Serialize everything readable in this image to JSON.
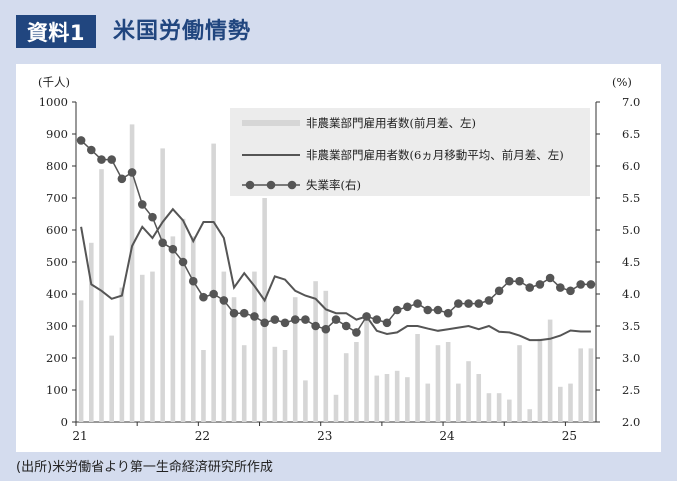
{
  "header": {
    "badge": "資料1",
    "title": "米国労働情勢"
  },
  "source": "(出所)米労働省より第一生命経済研究所作成",
  "chart_data": {
    "type": "bar",
    "left_axis": {
      "unit": "(千人)",
      "min": 0,
      "max": 1000,
      "step": 100,
      "ticks": [
        "0",
        "100",
        "200",
        "300",
        "400",
        "500",
        "600",
        "700",
        "800",
        "900",
        "1000"
      ]
    },
    "right_axis": {
      "unit": "(%)",
      "min": 2.0,
      "max": 7.0,
      "step": 0.5,
      "ticks": [
        "2.0",
        "2.5",
        "3.0",
        "3.5",
        "4.0",
        "4.5",
        "5.0",
        "5.5",
        "6.0",
        "6.5",
        "7.0"
      ]
    },
    "x_ticks": [
      {
        "label": "21",
        "index": 0
      },
      {
        "label": "22",
        "index": 12
      },
      {
        "label": "23",
        "index": 24
      },
      {
        "label": "24",
        "index": 36
      },
      {
        "label": "25",
        "index": 48
      }
    ],
    "months": [
      "2021-01",
      "2021-02",
      "2021-03",
      "2021-04",
      "2021-05",
      "2021-06",
      "2021-07",
      "2021-08",
      "2021-09",
      "2021-10",
      "2021-11",
      "2021-12",
      "2022-01",
      "2022-02",
      "2022-03",
      "2022-04",
      "2022-05",
      "2022-06",
      "2022-07",
      "2022-08",
      "2022-09",
      "2022-10",
      "2022-11",
      "2022-12",
      "2023-01",
      "2023-02",
      "2023-03",
      "2023-04",
      "2023-05",
      "2023-06",
      "2023-07",
      "2023-08",
      "2023-09",
      "2023-10",
      "2023-11",
      "2023-12",
      "2024-01",
      "2024-02",
      "2024-03",
      "2024-04",
      "2024-05",
      "2024-06",
      "2024-07",
      "2024-08",
      "2024-09",
      "2024-10",
      "2024-11",
      "2024-12",
      "2025-01",
      "2025-02",
      "2025-03"
    ],
    "series": [
      {
        "name": "非農業部門雇用者数(前月差、左)",
        "kind": "bar",
        "axis": "left",
        "color": "#d6d6d6",
        "values": [
          380,
          560,
          790,
          270,
          420,
          930,
          460,
          470,
          855,
          580,
          635,
          580,
          225,
          870,
          470,
          390,
          240,
          470,
          700,
          235,
          225,
          390,
          130,
          440,
          410,
          85,
          215,
          250,
          330,
          145,
          150,
          160,
          140,
          275,
          120,
          240,
          250,
          120,
          190,
          150,
          90,
          90,
          70,
          240,
          40,
          260,
          320,
          110,
          120,
          230,
          230
        ]
      },
      {
        "name": "非農業部門雇用者数(6ヵ月移動平均、前月差、左)",
        "kind": "line",
        "axis": "left",
        "color": "#555555",
        "values": [
          610,
          430,
          410,
          385,
          395,
          550,
          610,
          575,
          625,
          665,
          630,
          565,
          625,
          625,
          575,
          420,
          465,
          425,
          380,
          455,
          445,
          410,
          395,
          385,
          352,
          340,
          340,
          320,
          330,
          285,
          275,
          280,
          300,
          300,
          292,
          285,
          290,
          295,
          300,
          290,
          300,
          282,
          280,
          270,
          256,
          256,
          260,
          270,
          286,
          283,
          283
        ]
      },
      {
        "name": "失業率(右)",
        "kind": "line-marker",
        "axis": "right",
        "color": "#555555",
        "values": [
          6.4,
          6.25,
          6.1,
          6.1,
          5.8,
          5.9,
          5.4,
          5.2,
          4.8,
          4.7,
          4.5,
          4.2,
          3.95,
          4.0,
          3.9,
          3.7,
          3.7,
          3.65,
          3.55,
          3.6,
          3.55,
          3.6,
          3.6,
          3.5,
          3.45,
          3.6,
          3.5,
          3.4,
          3.65,
          3.6,
          3.55,
          3.75,
          3.8,
          3.85,
          3.75,
          3.75,
          3.7,
          3.85,
          3.85,
          3.85,
          3.9,
          4.05,
          4.2,
          4.2,
          4.1,
          4.15,
          4.25,
          4.1,
          4.05,
          4.15,
          4.15
        ]
      }
    ],
    "legend_position": "top-right",
    "grid": false
  }
}
